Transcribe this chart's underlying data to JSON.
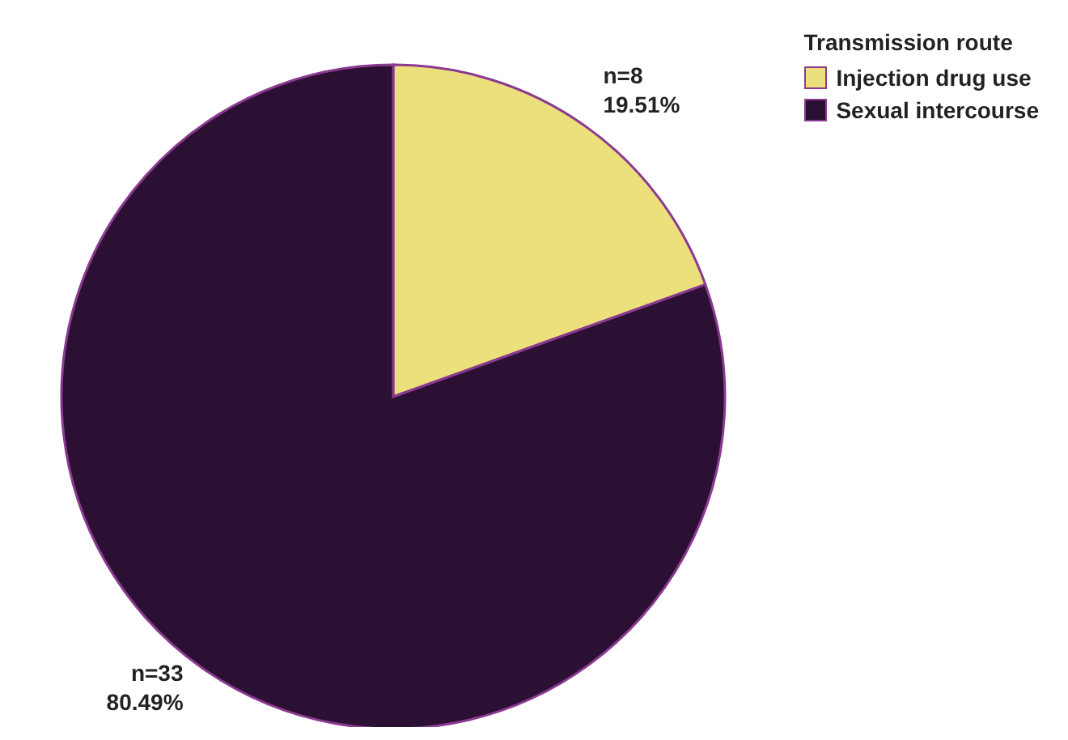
{
  "chart_data": {
    "type": "pie",
    "legend_title": "Transmission route",
    "categories": [
      "Injection drug use",
      "Sexual intercourse"
    ],
    "values": [
      8,
      33
    ],
    "colors": [
      "#ece07c",
      "#2c1034"
    ],
    "value_labels": [
      "n=8\n19.51%",
      "n=33\n80.49%"
    ],
    "legend": "top right"
  }
}
